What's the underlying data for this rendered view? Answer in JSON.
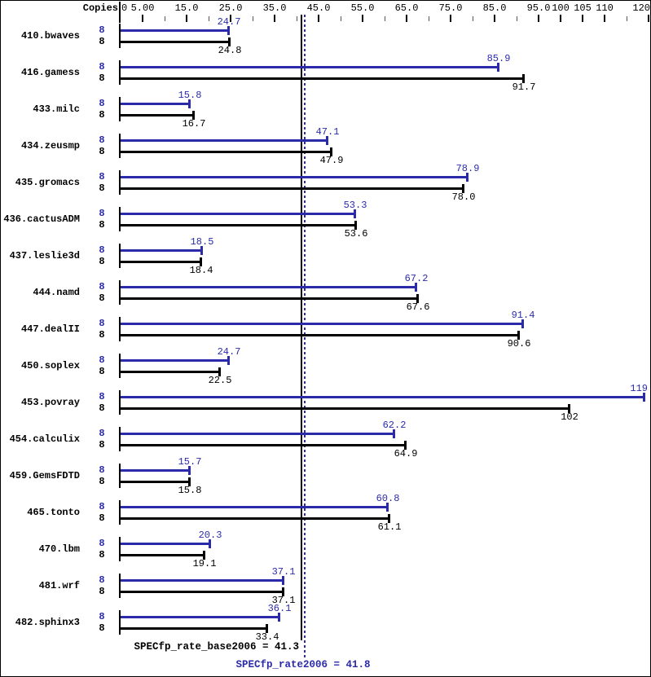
{
  "chart_data": {
    "type": "bar",
    "orientation": "horizontal",
    "copies_label": "Copies",
    "axis": {
      "range": [
        0,
        120
      ],
      "zero_label": "0",
      "major_ticks": [
        5,
        15,
        25,
        35,
        45,
        55,
        65,
        75,
        85,
        95,
        100,
        105,
        110,
        120
      ],
      "major_tick_labels": [
        "5.00",
        "15.0",
        "25.0",
        "35.0",
        "45.0",
        "55.0",
        "65.0",
        "75.0",
        "85.0",
        "95.0",
        "100",
        "105",
        "110",
        "120"
      ],
      "minor_ticks": [
        10,
        20,
        30,
        40,
        50,
        60,
        70,
        80,
        90,
        115
      ],
      "grid": false
    },
    "series": [
      {
        "name": "SPECfp_rate2006 (peak)",
        "color": "#2b2baa"
      },
      {
        "name": "SPECfp_rate_base2006 (base)",
        "color": "#000000"
      }
    ],
    "benchmarks": [
      {
        "name": "410.bwaves",
        "copies": "8",
        "peak": 24.7,
        "peak_label": "24.7",
        "base": 24.8,
        "base_label": "24.8"
      },
      {
        "name": "416.gamess",
        "copies": "8",
        "peak": 85.9,
        "peak_label": "85.9",
        "base": 91.7,
        "base_label": "91.7"
      },
      {
        "name": "433.milc",
        "copies": "8",
        "peak": 15.8,
        "peak_label": "15.8",
        "base": 16.7,
        "base_label": "16.7"
      },
      {
        "name": "434.zeusmp",
        "copies": "8",
        "peak": 47.1,
        "peak_label": "47.1",
        "base": 47.9,
        "base_label": "47.9"
      },
      {
        "name": "435.gromacs",
        "copies": "8",
        "peak": 78.9,
        "peak_label": "78.9",
        "base": 78.0,
        "base_label": "78.0"
      },
      {
        "name": "436.cactusADM",
        "copies": "8",
        "peak": 53.3,
        "peak_label": "53.3",
        "base": 53.6,
        "base_label": "53.6"
      },
      {
        "name": "437.leslie3d",
        "copies": "8",
        "peak": 18.5,
        "peak_label": "18.5",
        "base": 18.4,
        "base_label": "18.4"
      },
      {
        "name": "444.namd",
        "copies": "8",
        "peak": 67.2,
        "peak_label": "67.2",
        "base": 67.6,
        "base_label": "67.6"
      },
      {
        "name": "447.dealII",
        "copies": "8",
        "peak": 91.4,
        "peak_label": "91.4",
        "base": 90.6,
        "base_label": "90.6"
      },
      {
        "name": "450.soplex",
        "copies": "8",
        "peak": 24.7,
        "peak_label": "24.7",
        "base": 22.5,
        "base_label": "22.5"
      },
      {
        "name": "453.povray",
        "copies": "8",
        "peak": 119,
        "peak_label": "119",
        "base": 102,
        "base_label": "102"
      },
      {
        "name": "454.calculix",
        "copies": "8",
        "peak": 62.2,
        "peak_label": "62.2",
        "base": 64.9,
        "base_label": "64.9"
      },
      {
        "name": "459.GemsFDTD",
        "copies": "8",
        "peak": 15.7,
        "peak_label": "15.7",
        "base": 15.8,
        "base_label": "15.8"
      },
      {
        "name": "465.tonto",
        "copies": "8",
        "peak": 60.8,
        "peak_label": "60.8",
        "base": 61.1,
        "base_label": "61.1"
      },
      {
        "name": "470.lbm",
        "copies": "8",
        "peak": 20.3,
        "peak_label": "20.3",
        "base": 19.1,
        "base_label": "19.1"
      },
      {
        "name": "481.wrf",
        "copies": "8",
        "peak": 37.1,
        "peak_label": "37.1",
        "base": 37.1,
        "base_label": "37.1"
      },
      {
        "name": "482.sphinx3",
        "copies": "8",
        "peak": 36.1,
        "peak_label": "36.1",
        "base": 33.4,
        "base_label": "33.4"
      }
    ],
    "means": {
      "base": {
        "value": 41.3,
        "label": "SPECfp_rate_base2006 = 41.3"
      },
      "peak": {
        "value": 41.8,
        "label": "SPECfp_rate2006 = 41.8"
      }
    },
    "colors": {
      "peak": "#2b2baa",
      "base": "#000000"
    }
  }
}
